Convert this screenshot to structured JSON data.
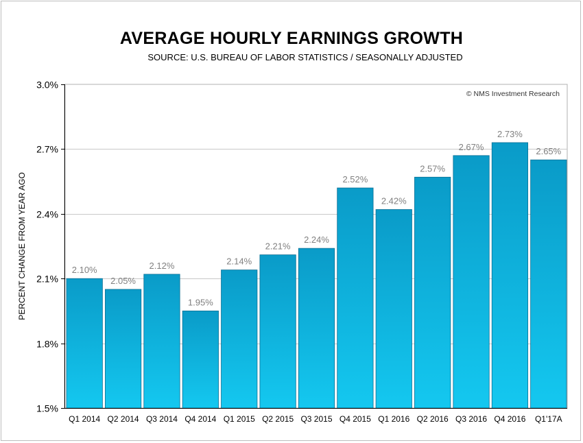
{
  "chart_data": {
    "type": "bar",
    "title": "AVERAGE HOURLY EARNINGS GROWTH",
    "subtitle": "SOURCE: U.S. BUREAU OF LABOR STATISTICS / SEASONALLY ADJUSTED",
    "ylabel": "PERCENT CHANGE FROM YEAR AGO",
    "xlabel": "",
    "annotation": "© NMS Investment Research",
    "categories": [
      "Q1 2014",
      "Q2 2014",
      "Q3 2014",
      "Q4 2014",
      "Q1 2015",
      "Q2 2015",
      "Q3 2015",
      "Q4 2015",
      "Q1 2016",
      "Q2 2016",
      "Q3 2016",
      "Q4 2016",
      "Q1'17A"
    ],
    "values": [
      2.1,
      2.05,
      2.12,
      1.95,
      2.14,
      2.21,
      2.24,
      2.52,
      2.42,
      2.57,
      2.67,
      2.73,
      2.65
    ],
    "data_labels": [
      "2.10%",
      "2.05%",
      "2.12%",
      "1.95%",
      "2.14%",
      "2.21%",
      "2.24%",
      "2.52%",
      "2.42%",
      "2.57%",
      "2.67%",
      "2.73%",
      "2.65%"
    ],
    "ylim": [
      1.5,
      3.0
    ],
    "yticks": [
      1.5,
      1.8,
      2.1,
      2.4,
      2.7,
      3.0
    ],
    "ytick_labels": [
      "1.5%",
      "1.8%",
      "2.1%",
      "2.4%",
      "2.7%",
      "3.0%"
    ],
    "grid": true,
    "bar_color_top": "#0a9bc8",
    "bar_color_bottom": "#14c8f0",
    "label_color": "#808080"
  }
}
